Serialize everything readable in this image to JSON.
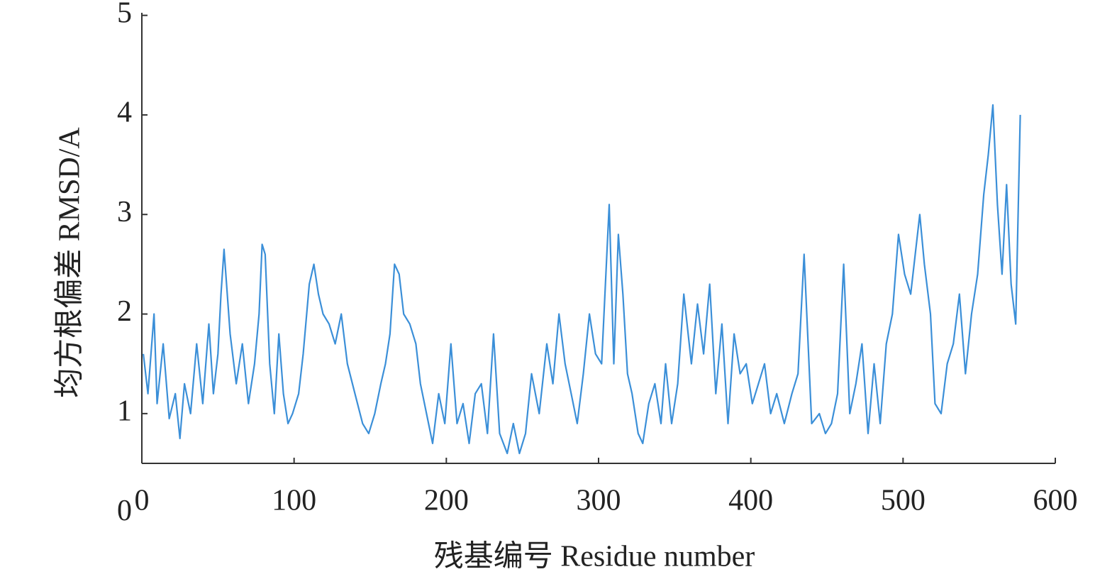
{
  "chart_data": {
    "type": "line",
    "xlabel": "残基编号 Residue number",
    "ylabel": "均方根偏差 RMSD/A",
    "xlim": [
      0,
      600
    ],
    "xticks": [
      0,
      100,
      200,
      300,
      400,
      500,
      600
    ],
    "ylim": [
      0.5,
      5
    ],
    "yticks": [
      0,
      1,
      2,
      3,
      4,
      5
    ],
    "series": [
      {
        "color": "#3b8fd8",
        "x": [
          1,
          4,
          8,
          10,
          14,
          18,
          22,
          25,
          28,
          32,
          36,
          40,
          44,
          47,
          50,
          52,
          54,
          58,
          62,
          66,
          70,
          74,
          77,
          79,
          81,
          84,
          87,
          90,
          93,
          96,
          99,
          103,
          106,
          110,
          113,
          116,
          119,
          123,
          127,
          131,
          135,
          140,
          145,
          149,
          153,
          157,
          160,
          163,
          166,
          169,
          172,
          176,
          180,
          183,
          187,
          191,
          195,
          199,
          203,
          207,
          211,
          215,
          219,
          223,
          227,
          231,
          235,
          240,
          244,
          248,
          252,
          256,
          261,
          266,
          270,
          274,
          278,
          282,
          286,
          290,
          294,
          298,
          302,
          307,
          310,
          313,
          316,
          319,
          322,
          326,
          329,
          333,
          337,
          341,
          344,
          348,
          352,
          356,
          361,
          365,
          369,
          373,
          377,
          381,
          385,
          389,
          393,
          397,
          401,
          405,
          409,
          413,
          417,
          422,
          427,
          431,
          435,
          440,
          445,
          449,
          453,
          457,
          461,
          465,
          469,
          473,
          477,
          481,
          485,
          489,
          493,
          497,
          501,
          505,
          508,
          511,
          514,
          518,
          521,
          525,
          529,
          533,
          537,
          541,
          545,
          549,
          553,
          556,
          559,
          562,
          565,
          568,
          571,
          574,
          577
        ],
        "values": [
          1.6,
          1.2,
          2.0,
          1.1,
          1.7,
          0.95,
          1.2,
          0.75,
          1.3,
          1.0,
          1.7,
          1.1,
          1.9,
          1.2,
          1.6,
          2.2,
          2.65,
          1.8,
          1.3,
          1.7,
          1.1,
          1.5,
          2.0,
          2.7,
          2.6,
          1.5,
          1.0,
          1.8,
          1.2,
          0.9,
          1.0,
          1.2,
          1.6,
          2.3,
          2.5,
          2.2,
          2.0,
          1.9,
          1.7,
          2.0,
          1.5,
          1.2,
          0.9,
          0.8,
          1.0,
          1.3,
          1.5,
          1.8,
          2.5,
          2.4,
          2.0,
          1.9,
          1.7,
          1.3,
          1.0,
          0.7,
          1.2,
          0.9,
          1.7,
          0.9,
          1.1,
          0.7,
          1.2,
          1.3,
          0.8,
          1.8,
          0.8,
          0.6,
          0.9,
          0.6,
          0.8,
          1.4,
          1.0,
          1.7,
          1.3,
          2.0,
          1.5,
          1.2,
          0.9,
          1.4,
          2.0,
          1.6,
          1.5,
          3.1,
          1.5,
          2.8,
          2.2,
          1.4,
          1.2,
          0.8,
          0.7,
          1.1,
          1.3,
          0.9,
          1.5,
          0.9,
          1.3,
          2.2,
          1.5,
          2.1,
          1.6,
          2.3,
          1.2,
          1.9,
          0.9,
          1.8,
          1.4,
          1.5,
          1.1,
          1.3,
          1.5,
          1.0,
          1.2,
          0.9,
          1.2,
          1.4,
          2.6,
          0.9,
          1.0,
          0.8,
          0.9,
          1.2,
          2.5,
          1.0,
          1.3,
          1.7,
          0.8,
          1.5,
          0.9,
          1.7,
          2.0,
          2.8,
          2.4,
          2.2,
          2.6,
          3.0,
          2.5,
          2.0,
          1.1,
          1.0,
          1.5,
          1.7,
          2.2,
          1.4,
          2.0,
          2.4,
          3.2,
          3.6,
          4.1,
          3.1,
          2.4,
          3.3,
          2.3,
          1.9,
          4.0
        ]
      }
    ]
  }
}
